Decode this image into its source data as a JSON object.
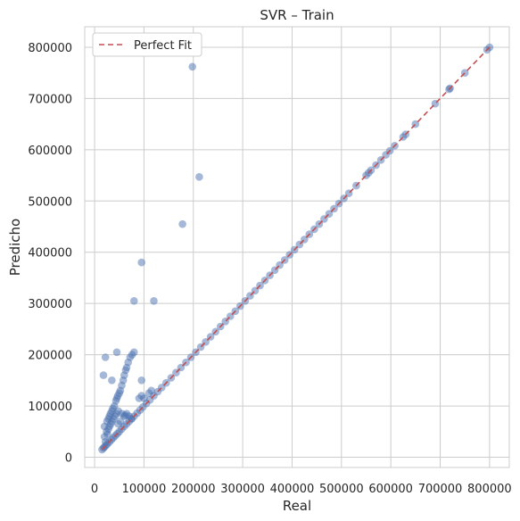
{
  "chart_data": {
    "type": "scatter",
    "title": "SVR – Train",
    "xlabel": "Real",
    "ylabel": "Predicho",
    "xlim": [
      -20000,
      840000
    ],
    "ylim": [
      -20000,
      840000
    ],
    "xticks": [
      0,
      100000,
      200000,
      300000,
      400000,
      500000,
      600000,
      700000,
      800000
    ],
    "yticks": [
      0,
      100000,
      200000,
      300000,
      400000,
      500000,
      600000,
      700000,
      800000
    ],
    "xtick_labels": [
      "0",
      "100000",
      "200000",
      "300000",
      "400000",
      "500000",
      "600000",
      "700000",
      "800000"
    ],
    "ytick_labels": [
      "0",
      "100000",
      "200000",
      "300000",
      "400000",
      "500000",
      "600000",
      "700000",
      "800000"
    ],
    "grid": true,
    "legend": {
      "position": "top-left",
      "entries": [
        "Perfect Fit"
      ]
    },
    "colors": {
      "points": "#4c72b0",
      "reference_line": "#c44e52",
      "grid": "#cccccc",
      "axes": "#cccccc"
    },
    "reference_line": {
      "name": "Perfect Fit",
      "x": [
        15000,
        800000
      ],
      "y": [
        15000,
        800000
      ]
    },
    "series": [
      {
        "values": [
          [
            15000,
            15000
          ],
          [
            18000,
            18000
          ],
          [
            20000,
            20000
          ],
          [
            23000,
            23000
          ],
          [
            26000,
            26000
          ],
          [
            30000,
            30000
          ],
          [
            34000,
            34000
          ],
          [
            38000,
            38000
          ],
          [
            42000,
            42000
          ],
          [
            46000,
            46000
          ],
          [
            50000,
            50000
          ],
          [
            55000,
            55000
          ],
          [
            60000,
            60000
          ],
          [
            65000,
            65000
          ],
          [
            70000,
            70000
          ],
          [
            75000,
            75000
          ],
          [
            80000,
            80000
          ],
          [
            86000,
            86000
          ],
          [
            92000,
            92000
          ],
          [
            98000,
            98000
          ],
          [
            105000,
            105000
          ],
          [
            112000,
            112000
          ],
          [
            120000,
            120000
          ],
          [
            128000,
            128000
          ],
          [
            136000,
            136000
          ],
          [
            145000,
            145000
          ],
          [
            155000,
            155000
          ],
          [
            165000,
            165000
          ],
          [
            175000,
            175000
          ],
          [
            185000,
            185000
          ],
          [
            195000,
            195000
          ],
          [
            205000,
            205000
          ],
          [
            215000,
            215000
          ],
          [
            225000,
            225000
          ],
          [
            235000,
            235000
          ],
          [
            245000,
            245000
          ],
          [
            255000,
            255000
          ],
          [
            265000,
            265000
          ],
          [
            275000,
            275000
          ],
          [
            285000,
            285000
          ],
          [
            295000,
            295000
          ],
          [
            305000,
            305000
          ],
          [
            315000,
            315000
          ],
          [
            325000,
            325000
          ],
          [
            335000,
            335000
          ],
          [
            345000,
            345000
          ],
          [
            355000,
            355000
          ],
          [
            365000,
            365000
          ],
          [
            375000,
            375000
          ],
          [
            385000,
            385000
          ],
          [
            395000,
            395000
          ],
          [
            405000,
            405000
          ],
          [
            415000,
            415000
          ],
          [
            425000,
            425000
          ],
          [
            435000,
            435000
          ],
          [
            445000,
            445000
          ],
          [
            455000,
            455000
          ],
          [
            465000,
            465000
          ],
          [
            475000,
            475000
          ],
          [
            485000,
            485000
          ],
          [
            495000,
            495000
          ],
          [
            505000,
            505000
          ],
          [
            515000,
            515000
          ],
          [
            530000,
            530000
          ],
          [
            550000,
            550000
          ],
          [
            555000,
            555000
          ],
          [
            560000,
            560000
          ],
          [
            570000,
            570000
          ],
          [
            580000,
            580000
          ],
          [
            590000,
            590000
          ],
          [
            598000,
            598000
          ],
          [
            608000,
            608000
          ],
          [
            625000,
            625000
          ],
          [
            630000,
            630000
          ],
          [
            650000,
            650000
          ],
          [
            690000,
            690000
          ],
          [
            718000,
            718000
          ],
          [
            720000,
            720000
          ],
          [
            750000,
            750000
          ],
          [
            795000,
            795000
          ],
          [
            800000,
            800000
          ],
          [
            20000,
            40000
          ],
          [
            20000,
            60000
          ],
          [
            22000,
            30000
          ],
          [
            24000,
            50000
          ],
          [
            25000,
            70000
          ],
          [
            26000,
            45000
          ],
          [
            28000,
            75000
          ],
          [
            28000,
            55000
          ],
          [
            30000,
            80000
          ],
          [
            30000,
            60000
          ],
          [
            32000,
            85000
          ],
          [
            33000,
            65000
          ],
          [
            35000,
            90000
          ],
          [
            35000,
            70000
          ],
          [
            37000,
            95000
          ],
          [
            38000,
            75000
          ],
          [
            40000,
            100000
          ],
          [
            41000,
            80000
          ],
          [
            43000,
            110000
          ],
          [
            44000,
            85000
          ],
          [
            45000,
            115000
          ],
          [
            47000,
            120000
          ],
          [
            48000,
            90000
          ],
          [
            50000,
            125000
          ],
          [
            52000,
            130000
          ],
          [
            55000,
            140000
          ],
          [
            58000,
            150000
          ],
          [
            60000,
            160000
          ],
          [
            63000,
            170000
          ],
          [
            65000,
            175000
          ],
          [
            68000,
            185000
          ],
          [
            72000,
            195000
          ],
          [
            76000,
            200000
          ],
          [
            80000,
            205000
          ],
          [
            55000,
            85000
          ],
          [
            60000,
            80000
          ],
          [
            65000,
            85000
          ],
          [
            70000,
            80000
          ],
          [
            75000,
            75000
          ],
          [
            48000,
            65000
          ],
          [
            52000,
            70000
          ],
          [
            62000,
            82000
          ],
          [
            90000,
            115000
          ],
          [
            95000,
            120000
          ],
          [
            100000,
            115000
          ],
          [
            110000,
            125000
          ],
          [
            115000,
            130000
          ],
          [
            18000,
            160000
          ],
          [
            22000,
            195000
          ],
          [
            45000,
            205000
          ],
          [
            35000,
            150000
          ],
          [
            80000,
            305000
          ],
          [
            95000,
            380000
          ],
          [
            95000,
            150000
          ],
          [
            120000,
            305000
          ],
          [
            178000,
            455000
          ],
          [
            198000,
            762000
          ],
          [
            212000,
            547000
          ]
        ]
      }
    ]
  }
}
